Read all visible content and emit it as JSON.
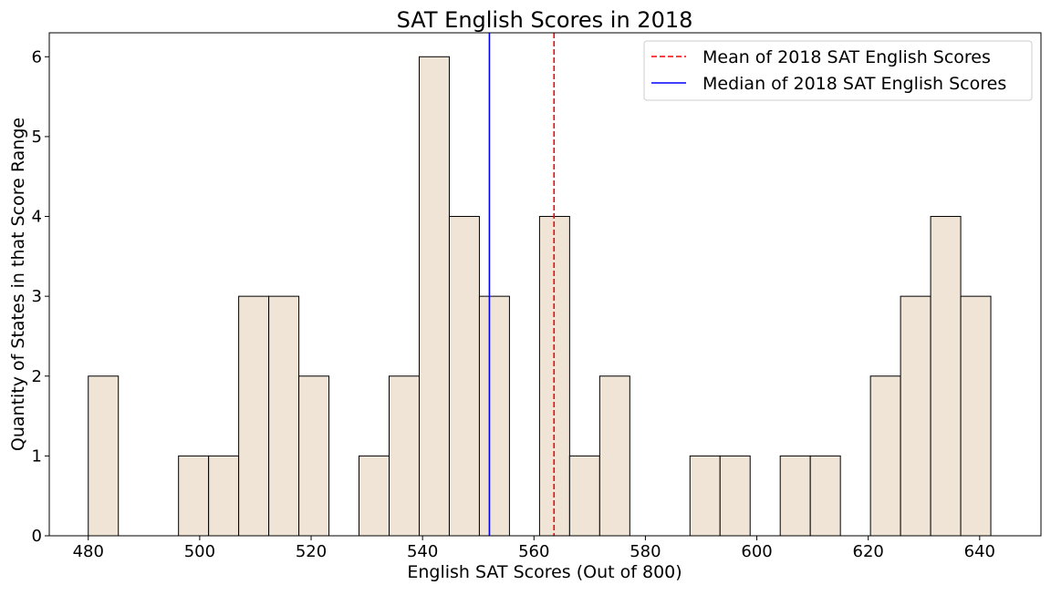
{
  "chart_data": {
    "type": "bar",
    "title": "SAT English Scores in 2018",
    "xlabel": "English SAT Scores (Out of 800)",
    "ylabel": "Quantity of States in that Score Range",
    "xlim": [
      473,
      651
    ],
    "ylim": [
      0,
      6.3
    ],
    "x_ticks": [
      480,
      500,
      520,
      540,
      560,
      580,
      600,
      620,
      640
    ],
    "y_ticks": [
      0,
      1,
      2,
      3,
      4,
      5,
      6
    ],
    "bin_edges": [
      480,
      485.4,
      490.8,
      496.2,
      501.6,
      507.0,
      512.4,
      517.8,
      523.2,
      528.6,
      534.0,
      539.4,
      544.8,
      550.2,
      555.6,
      561.0,
      566.4,
      571.8,
      577.2,
      582.6,
      588.0,
      593.4,
      598.8,
      604.2,
      609.6,
      615.0,
      620.4,
      625.8,
      631.2,
      636.6,
      642.0
    ],
    "values": [
      2,
      0,
      0,
      1,
      1,
      3,
      3,
      2,
      0,
      1,
      2,
      6,
      4,
      3,
      0,
      4,
      1,
      2,
      0,
      0,
      1,
      1,
      0,
      1,
      1,
      0,
      2,
      3,
      4,
      3
    ],
    "bar_color": "#efe4d6",
    "bar_edge_color": "#000000",
    "reference_lines": [
      {
        "name": "Mean of 2018 SAT English Scores",
        "x": 563.6,
        "color": "#ff0000",
        "style": "dashed"
      },
      {
        "name": "Median of 2018 SAT English Scores",
        "x": 552.0,
        "color": "#0000ff",
        "style": "solid"
      }
    ],
    "legend_position": "top-right",
    "grid": false
  }
}
